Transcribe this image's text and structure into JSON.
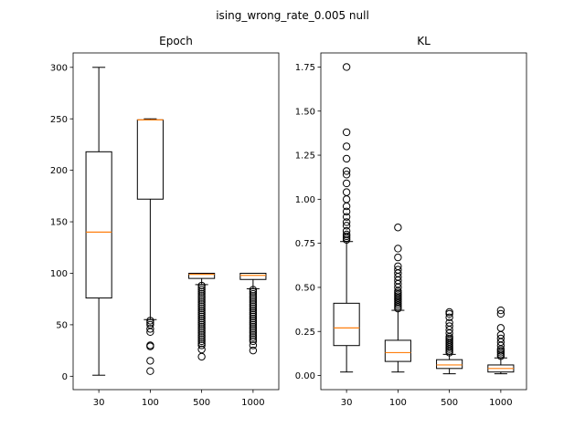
{
  "chart_data": {
    "suptitle": "ising_wrong_rate_0.005 null",
    "panels": [
      {
        "type": "box",
        "title": "Epoch",
        "xlabel": "",
        "ylabel": "",
        "categories": [
          "30",
          "100",
          "500",
          "1000"
        ],
        "ylim": [
          -13,
          314
        ],
        "yticks": [
          0,
          50,
          100,
          150,
          200,
          250,
          300
        ],
        "ytick_labels": [
          "0",
          "50",
          "100",
          "150",
          "200",
          "250",
          "300"
        ],
        "boxes": [
          {
            "whislo": 1,
            "q1": 76,
            "median": 140,
            "q3": 218,
            "whishi": 300,
            "fliers": []
          },
          {
            "whislo": 55,
            "q1": 172,
            "median": 249,
            "q3": 249,
            "whishi": 250,
            "fliers": [
              54,
              52,
              50,
              46,
              43,
              30,
              29,
              15,
              5
            ]
          },
          {
            "whislo": 89,
            "q1": 95,
            "median": 99,
            "q3": 100,
            "whishi": 100,
            "fliers": [
              88,
              86,
              84,
              82,
              80,
              78,
              76,
              74,
              72,
              70,
              68,
              66,
              64,
              62,
              60,
              58,
              56,
              54,
              52,
              50,
              48,
              46,
              44,
              42,
              40,
              38,
              36,
              34,
              32,
              30,
              26,
              19
            ]
          },
          {
            "whislo": 85,
            "q1": 94,
            "median": 98,
            "q3": 100,
            "whishi": 100,
            "fliers": [
              84,
              82,
              80,
              78,
              76,
              74,
              72,
              70,
              68,
              66,
              64,
              62,
              60,
              58,
              56,
              54,
              52,
              50,
              48,
              46,
              44,
              42,
              40,
              38,
              36,
              34,
              30,
              25
            ]
          }
        ]
      },
      {
        "type": "box",
        "title": "KL",
        "xlabel": "",
        "ylabel": "",
        "categories": [
          "30",
          "100",
          "500",
          "1000"
        ],
        "ylim": [
          -0.08,
          1.83
        ],
        "yticks": [
          0.0,
          0.25,
          0.5,
          0.75,
          1.0,
          1.25,
          1.5,
          1.75
        ],
        "ytick_labels": [
          "0.00",
          "0.25",
          "0.50",
          "0.75",
          "1.00",
          "1.25",
          "1.50",
          "1.75"
        ],
        "boxes": [
          {
            "whislo": 0.02,
            "q1": 0.17,
            "median": 0.27,
            "q3": 0.41,
            "whishi": 0.76,
            "fliers": [
              0.77,
              0.78,
              0.79,
              0.8,
              0.82,
              0.85,
              0.87,
              0.9,
              0.93,
              0.96,
              1.0,
              1.04,
              1.09,
              1.14,
              1.16,
              1.23,
              1.3,
              1.38,
              1.75
            ]
          },
          {
            "whislo": 0.02,
            "q1": 0.08,
            "median": 0.13,
            "q3": 0.2,
            "whishi": 0.37,
            "fliers": [
              0.38,
              0.39,
              0.4,
              0.41,
              0.42,
              0.43,
              0.44,
              0.45,
              0.46,
              0.47,
              0.48,
              0.5,
              0.52,
              0.54,
              0.56,
              0.58,
              0.6,
              0.62,
              0.67,
              0.72,
              0.84
            ]
          },
          {
            "whislo": 0.01,
            "q1": 0.04,
            "median": 0.06,
            "q3": 0.09,
            "whishi": 0.12,
            "fliers": [
              0.13,
              0.14,
              0.15,
              0.16,
              0.17,
              0.18,
              0.19,
              0.2,
              0.21,
              0.22,
              0.24,
              0.26,
              0.28,
              0.3,
              0.33,
              0.35,
              0.36
            ]
          },
          {
            "whislo": 0.01,
            "q1": 0.02,
            "median": 0.04,
            "q3": 0.06,
            "whishi": 0.1,
            "fliers": [
              0.11,
              0.12,
              0.13,
              0.14,
              0.15,
              0.17,
              0.19,
              0.21,
              0.23,
              0.27,
              0.35,
              0.37
            ]
          }
        ]
      }
    ],
    "colors": {
      "box_line": "#000000",
      "median_line": "#ff7f0e",
      "flier_edge": "#000000"
    }
  }
}
